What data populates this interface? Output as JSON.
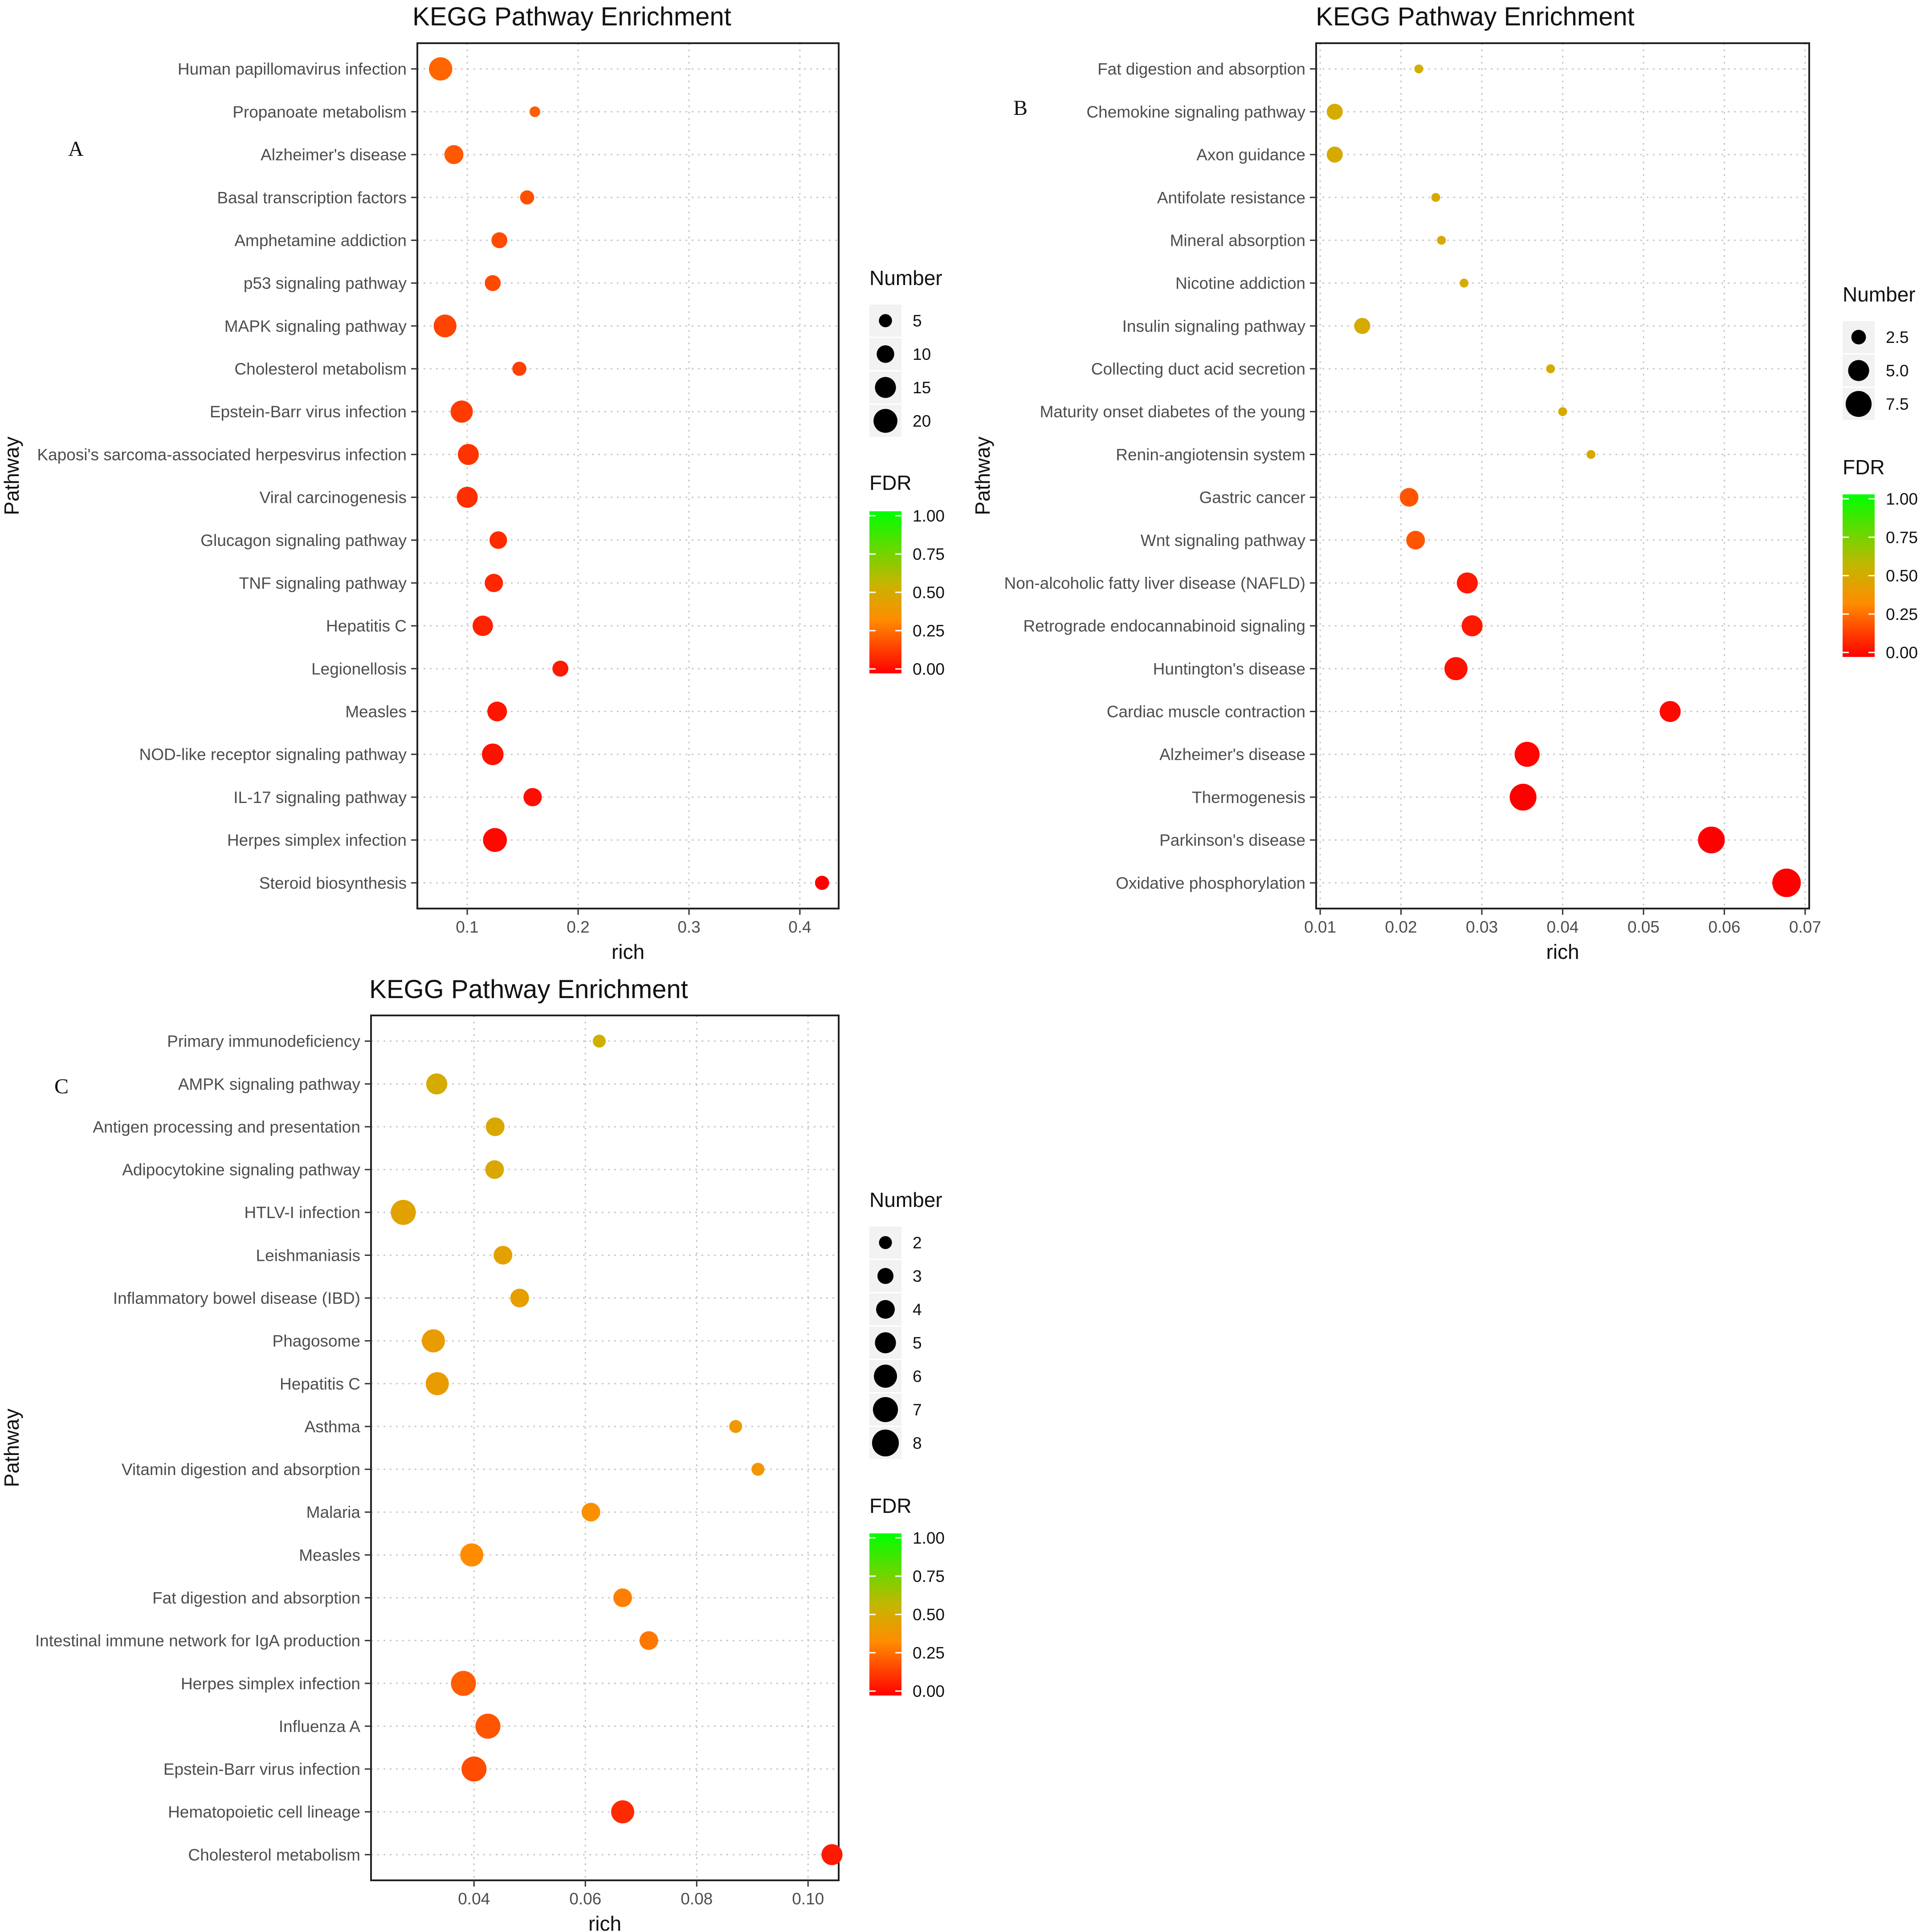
{
  "figure": {
    "background": "#ffffff",
    "grid_color": "#c8c8c8",
    "point_stroke": "none"
  },
  "fdr_colors": {
    "low": "#ff0000",
    "mid": "#ff8c00",
    "mid2": "#c8b400",
    "high": "#00ff00"
  },
  "chart_data": [
    {
      "panel": "A",
      "type": "scatter",
      "title": "KEGG Pathway Enrichment",
      "xlabel": "rich",
      "ylabel": "Pathway",
      "xlim": [
        0.055,
        0.435
      ],
      "xticks": [
        0.1,
        0.2,
        0.3,
        0.4
      ],
      "xtick_labels": [
        "0.1",
        "0.2",
        "0.3",
        "0.4"
      ],
      "grid": true,
      "size_legend": {
        "title": "Number",
        "values": [
          5,
          10,
          15,
          20
        ],
        "labels": [
          "5",
          "10",
          "15",
          "20"
        ]
      },
      "color_legend": {
        "title": "FDR",
        "range": [
          0,
          1
        ],
        "labels": [
          "1.00",
          "0.75",
          "0.50",
          "0.25",
          "0.00"
        ]
      },
      "size_domain": [
        3,
        22
      ],
      "categories": [
        "Human papillomavirus infection",
        "Propanoate metabolism",
        "Alzheimer's disease",
        "Basal transcription factors",
        "Amphetamine addiction",
        "p53 signaling pathway",
        "MAPK signaling pathway",
        "Cholesterol metabolism",
        "Epstein-Barr virus infection",
        "Kaposi's sarcoma-associated herpesvirus infection",
        "Viral carcinogenesis",
        "Glucagon signaling pathway",
        "TNF signaling pathway",
        "Hepatitis C",
        "Legionellosis",
        "Measles",
        "NOD-like receptor signaling pathway",
        "IL-17 signaling pathway",
        "Herpes simplex infection",
        "Steroid biosynthesis"
      ],
      "points": [
        {
          "rich": 0.076,
          "number": 19,
          "fdr": 0.24
        },
        {
          "rich": 0.161,
          "number": 3,
          "fdr": 0.22
        },
        {
          "rich": 0.088,
          "number": 12,
          "fdr": 0.21
        },
        {
          "rich": 0.154,
          "number": 6,
          "fdr": 0.19
        },
        {
          "rich": 0.129,
          "number": 8,
          "fdr": 0.18
        },
        {
          "rich": 0.123,
          "number": 8,
          "fdr": 0.17
        },
        {
          "rich": 0.08,
          "number": 18,
          "fdr": 0.16
        },
        {
          "rich": 0.147,
          "number": 6,
          "fdr": 0.15
        },
        {
          "rich": 0.095,
          "number": 17,
          "fdr": 0.14
        },
        {
          "rich": 0.101,
          "number": 15,
          "fdr": 0.12
        },
        {
          "rich": 0.1,
          "number": 15,
          "fdr": 0.11
        },
        {
          "rich": 0.128,
          "number": 10,
          "fdr": 0.1
        },
        {
          "rich": 0.124,
          "number": 11,
          "fdr": 0.09
        },
        {
          "rich": 0.114,
          "number": 14,
          "fdr": 0.08
        },
        {
          "rich": 0.184,
          "number": 8,
          "fdr": 0.06
        },
        {
          "rich": 0.127,
          "number": 13,
          "fdr": 0.05
        },
        {
          "rich": 0.123,
          "number": 16,
          "fdr": 0.04
        },
        {
          "rich": 0.159,
          "number": 11,
          "fdr": 0.03
        },
        {
          "rich": 0.125,
          "number": 20,
          "fdr": 0.02
        },
        {
          "rich": 0.42,
          "number": 6,
          "fdr": 0.0
        }
      ]
    },
    {
      "panel": "B",
      "type": "scatter",
      "title": "KEGG Pathway Enrichment",
      "xlabel": "rich",
      "ylabel": "Pathway",
      "xlim": [
        0.0095,
        0.0705
      ],
      "xticks": [
        0.01,
        0.02,
        0.03,
        0.04,
        0.05,
        0.06,
        0.07
      ],
      "xtick_labels": [
        "0.01",
        "0.02",
        "0.03",
        "0.04",
        "0.05",
        "0.06",
        "0.07"
      ],
      "grid": true,
      "size_legend": {
        "title": "Number",
        "values": [
          2.5,
          5.0,
          7.5
        ],
        "labels": [
          "2.5",
          "5.0",
          "7.5"
        ]
      },
      "color_legend": {
        "title": "FDR",
        "range": [
          0,
          1
        ],
        "labels": [
          "1.00",
          "0.75",
          "0.50",
          "0.25",
          "0.00"
        ]
      },
      "size_domain": [
        1,
        9
      ],
      "categories": [
        "Fat digestion and absorption",
        "Chemokine signaling pathway",
        "Axon guidance",
        "Antifolate resistance",
        "Mineral absorption",
        "Nicotine addiction",
        "Insulin signaling pathway",
        "Collecting duct acid secretion",
        "Maturity onset diabetes of the young",
        "Renin-angiotensin system",
        "Gastric cancer",
        "Wnt signaling pathway",
        "Non-alcoholic fatty liver disease (NAFLD)",
        "Retrograde endocannabinoid signaling",
        "Huntington's disease",
        "Cardiac muscle contraction",
        "Alzheimer's disease",
        "Thermogenesis",
        "Parkinson's disease",
        "Oxidative phosphorylation"
      ],
      "points": [
        {
          "rich": 0.0222,
          "number": 1,
          "fdr": 0.52
        },
        {
          "rich": 0.0118,
          "number": 3,
          "fdr": 0.5
        },
        {
          "rich": 0.0118,
          "number": 3,
          "fdr": 0.5
        },
        {
          "rich": 0.0243,
          "number": 1,
          "fdr": 0.5
        },
        {
          "rich": 0.025,
          "number": 1,
          "fdr": 0.5
        },
        {
          "rich": 0.0278,
          "number": 1,
          "fdr": 0.5
        },
        {
          "rich": 0.0152,
          "number": 3,
          "fdr": 0.5
        },
        {
          "rich": 0.0385,
          "number": 1,
          "fdr": 0.5
        },
        {
          "rich": 0.04,
          "number": 1,
          "fdr": 0.5
        },
        {
          "rich": 0.0435,
          "number": 1,
          "fdr": 0.5
        },
        {
          "rich": 0.021,
          "number": 4,
          "fdr": 0.2
        },
        {
          "rich": 0.0218,
          "number": 4,
          "fdr": 0.2
        },
        {
          "rich": 0.0282,
          "number": 5,
          "fdr": 0.06
        },
        {
          "rich": 0.0288,
          "number": 5,
          "fdr": 0.06
        },
        {
          "rich": 0.0268,
          "number": 6,
          "fdr": 0.04
        },
        {
          "rich": 0.0533,
          "number": 5,
          "fdr": 0.02
        },
        {
          "rich": 0.0356,
          "number": 7,
          "fdr": 0.01
        },
        {
          "rich": 0.0351,
          "number": 8,
          "fdr": 0.0
        },
        {
          "rich": 0.0584,
          "number": 8,
          "fdr": 0.0
        },
        {
          "rich": 0.0677,
          "number": 9,
          "fdr": 0.0
        }
      ]
    },
    {
      "panel": "C",
      "type": "scatter",
      "title": "KEGG Pathway Enrichment",
      "xlabel": "rich",
      "ylabel": "Pathway",
      "xlim": [
        0.0215,
        0.1055
      ],
      "xticks": [
        0.04,
        0.06,
        0.08,
        0.1
      ],
      "xtick_labels": [
        "0.04",
        "0.06",
        "0.08",
        "0.10"
      ],
      "grid": true,
      "size_legend": {
        "title": "Number",
        "values": [
          2,
          3,
          4,
          5,
          6,
          7,
          8
        ],
        "labels": [
          "2",
          "3",
          "4",
          "5",
          "6",
          "7",
          "8"
        ]
      },
      "color_legend": {
        "title": "FDR",
        "range": [
          0,
          1
        ],
        "labels": [
          "1.00",
          "0.75",
          "0.50",
          "0.25",
          "0.00"
        ]
      },
      "size_domain": [
        1,
        9
      ],
      "categories": [
        "Primary immunodeficiency",
        "AMPK signaling pathway",
        "Antigen processing and presentation",
        "Adipocytokine signaling pathway",
        "HTLV-I infection",
        "Leishmaniasis",
        "Inflammatory bowel disease (IBD)",
        "Phagosome",
        "Hepatitis C",
        "Asthma",
        "Vitamin digestion and absorption",
        "Malaria",
        "Measles",
        "Fat digestion and absorption",
        "Intestinal immune network for IgA production",
        "Herpes simplex infection",
        "Influenza A",
        "Epstein-Barr virus infection",
        "Hematopoietic cell lineage",
        "Cholesterol metabolism"
      ],
      "points": [
        {
          "rich": 0.0625,
          "number": 2,
          "fdr": 0.52
        },
        {
          "rich": 0.0333,
          "number": 5,
          "fdr": 0.5
        },
        {
          "rich": 0.0438,
          "number": 4,
          "fdr": 0.48
        },
        {
          "rich": 0.0437,
          "number": 4,
          "fdr": 0.48
        },
        {
          "rich": 0.0273,
          "number": 7,
          "fdr": 0.45
        },
        {
          "rich": 0.0452,
          "number": 4,
          "fdr": 0.44
        },
        {
          "rich": 0.0482,
          "number": 4,
          "fdr": 0.43
        },
        {
          "rich": 0.0327,
          "number": 6,
          "fdr": 0.42
        },
        {
          "rich": 0.0334,
          "number": 6,
          "fdr": 0.42
        },
        {
          "rich": 0.087,
          "number": 2,
          "fdr": 0.4
        },
        {
          "rich": 0.091,
          "number": 2,
          "fdr": 0.38
        },
        {
          "rich": 0.061,
          "number": 4,
          "fdr": 0.35
        },
        {
          "rich": 0.0396,
          "number": 6,
          "fdr": 0.33
        },
        {
          "rich": 0.0667,
          "number": 4,
          "fdr": 0.3
        },
        {
          "rich": 0.0714,
          "number": 4,
          "fdr": 0.28
        },
        {
          "rich": 0.0381,
          "number": 7,
          "fdr": 0.22
        },
        {
          "rich": 0.0425,
          "number": 7,
          "fdr": 0.2
        },
        {
          "rich": 0.04,
          "number": 7,
          "fdr": 0.18
        },
        {
          "rich": 0.0667,
          "number": 6,
          "fdr": 0.1
        },
        {
          "rich": 0.1043,
          "number": 5,
          "fdr": 0.06
        }
      ]
    }
  ]
}
